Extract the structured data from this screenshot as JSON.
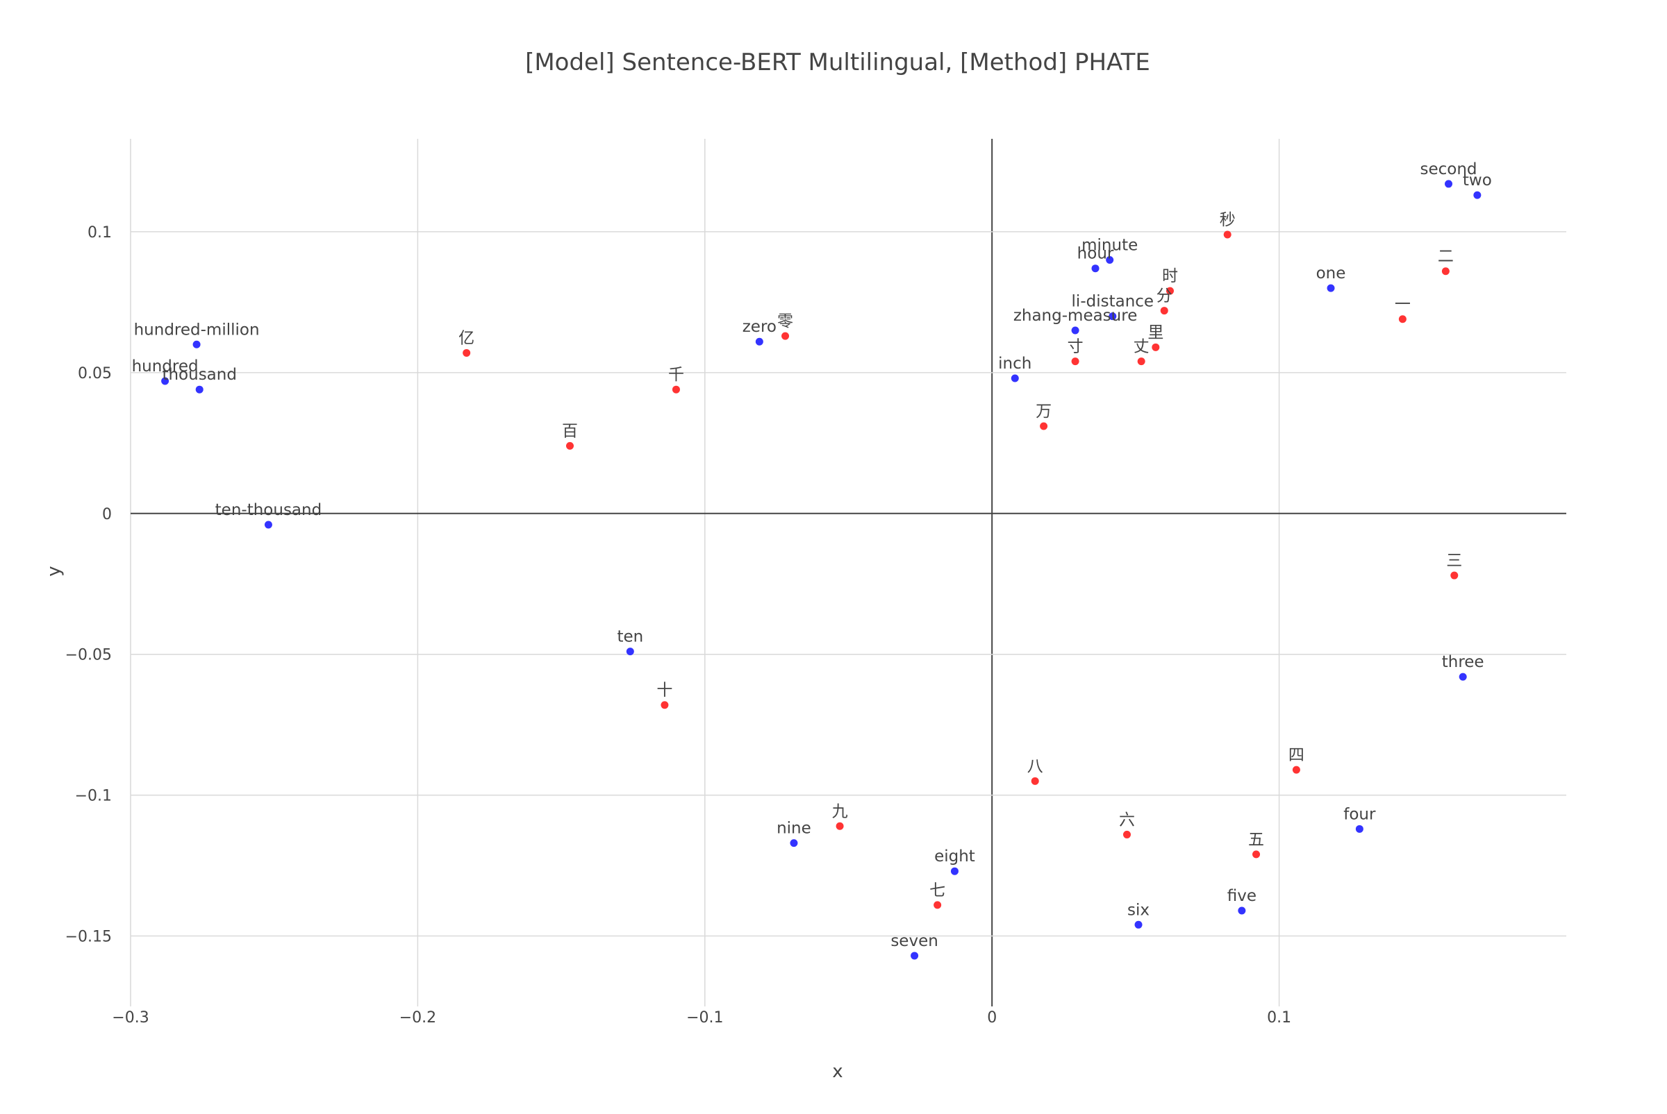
{
  "chart_data": {
    "type": "scatter",
    "title": "[Model] Sentence-BERT Multilingual, [Method] PHATE",
    "xlabel": "x",
    "ylabel": "y",
    "xlim": [
      -0.3,
      0.2
    ],
    "ylim": [
      -0.175,
      0.133
    ],
    "x_ticks": [
      {
        "value": -0.3,
        "label": "−0.3"
      },
      {
        "value": -0.2,
        "label": "−0.2"
      },
      {
        "value": -0.1,
        "label": "−0.1"
      },
      {
        "value": 0,
        "label": "0"
      },
      {
        "value": 0.1,
        "label": "0.1"
      }
    ],
    "y_ticks": [
      {
        "value": 0.1,
        "label": "0.1"
      },
      {
        "value": 0.05,
        "label": "0.05"
      },
      {
        "value": 0,
        "label": "0"
      },
      {
        "value": -0.05,
        "label": "−0.05"
      },
      {
        "value": -0.1,
        "label": "−0.1"
      },
      {
        "value": -0.15,
        "label": "−0.15"
      }
    ],
    "grid": true,
    "legend": "none",
    "colors": {
      "english": "#3333ff",
      "chinese": "#ff3333",
      "grid": "#d9d9d9",
      "zeroline": "#444444"
    },
    "series": [
      {
        "color": "#3333ff",
        "points": [
          {
            "label": "second",
            "x": 0.159,
            "y": 0.117
          },
          {
            "label": "two",
            "x": 0.169,
            "y": 0.113
          },
          {
            "label": "minute",
            "x": 0.041,
            "y": 0.09
          },
          {
            "label": "hour",
            "x": 0.036,
            "y": 0.087
          },
          {
            "label": "one",
            "x": 0.118,
            "y": 0.08
          },
          {
            "label": "li-distance",
            "x": 0.042,
            "y": 0.07
          },
          {
            "label": "zhang-measure",
            "x": 0.029,
            "y": 0.065
          },
          {
            "label": "inch",
            "x": 0.008,
            "y": 0.048
          },
          {
            "label": "hundred-million",
            "x": -0.277,
            "y": 0.06
          },
          {
            "label": "hundred",
            "x": -0.288,
            "y": 0.047
          },
          {
            "label": "thousand",
            "x": -0.276,
            "y": 0.044
          },
          {
            "label": "zero",
            "x": -0.081,
            "y": 0.061
          },
          {
            "label": "ten-thousand",
            "x": -0.252,
            "y": -0.004
          },
          {
            "label": "ten",
            "x": -0.126,
            "y": -0.049
          },
          {
            "label": "three",
            "x": 0.164,
            "y": -0.058
          },
          {
            "label": "four",
            "x": 0.128,
            "y": -0.112
          },
          {
            "label": "nine",
            "x": -0.069,
            "y": -0.117
          },
          {
            "label": "eight",
            "x": -0.013,
            "y": -0.127
          },
          {
            "label": "five",
            "x": 0.087,
            "y": -0.141
          },
          {
            "label": "six",
            "x": 0.051,
            "y": -0.146
          },
          {
            "label": "seven",
            "x": -0.027,
            "y": -0.157
          }
        ]
      },
      {
        "color": "#ff3333",
        "points": [
          {
            "label": "秒",
            "x": 0.082,
            "y": 0.099
          },
          {
            "label": "二",
            "x": 0.158,
            "y": 0.086
          },
          {
            "label": "时",
            "x": 0.062,
            "y": 0.079
          },
          {
            "label": "分",
            "x": 0.06,
            "y": 0.072
          },
          {
            "label": "一",
            "x": 0.143,
            "y": 0.069
          },
          {
            "label": "里",
            "x": 0.057,
            "y": 0.059
          },
          {
            "label": "丈",
            "x": 0.052,
            "y": 0.054
          },
          {
            "label": "寸",
            "x": 0.029,
            "y": 0.054
          },
          {
            "label": "零",
            "x": -0.072,
            "y": 0.063
          },
          {
            "label": "亿",
            "x": -0.183,
            "y": 0.057
          },
          {
            "label": "千",
            "x": -0.11,
            "y": 0.044
          },
          {
            "label": "万",
            "x": 0.018,
            "y": 0.031
          },
          {
            "label": "百",
            "x": -0.147,
            "y": 0.024
          },
          {
            "label": "三",
            "x": 0.161,
            "y": -0.022
          },
          {
            "label": "十",
            "x": -0.114,
            "y": -0.068
          },
          {
            "label": "八",
            "x": 0.015,
            "y": -0.095
          },
          {
            "label": "四",
            "x": 0.106,
            "y": -0.091
          },
          {
            "label": "九",
            "x": -0.053,
            "y": -0.111
          },
          {
            "label": "六",
            "x": 0.047,
            "y": -0.114
          },
          {
            "label": "五",
            "x": 0.092,
            "y": -0.121
          },
          {
            "label": "七",
            "x": -0.019,
            "y": -0.139
          }
        ]
      }
    ]
  }
}
